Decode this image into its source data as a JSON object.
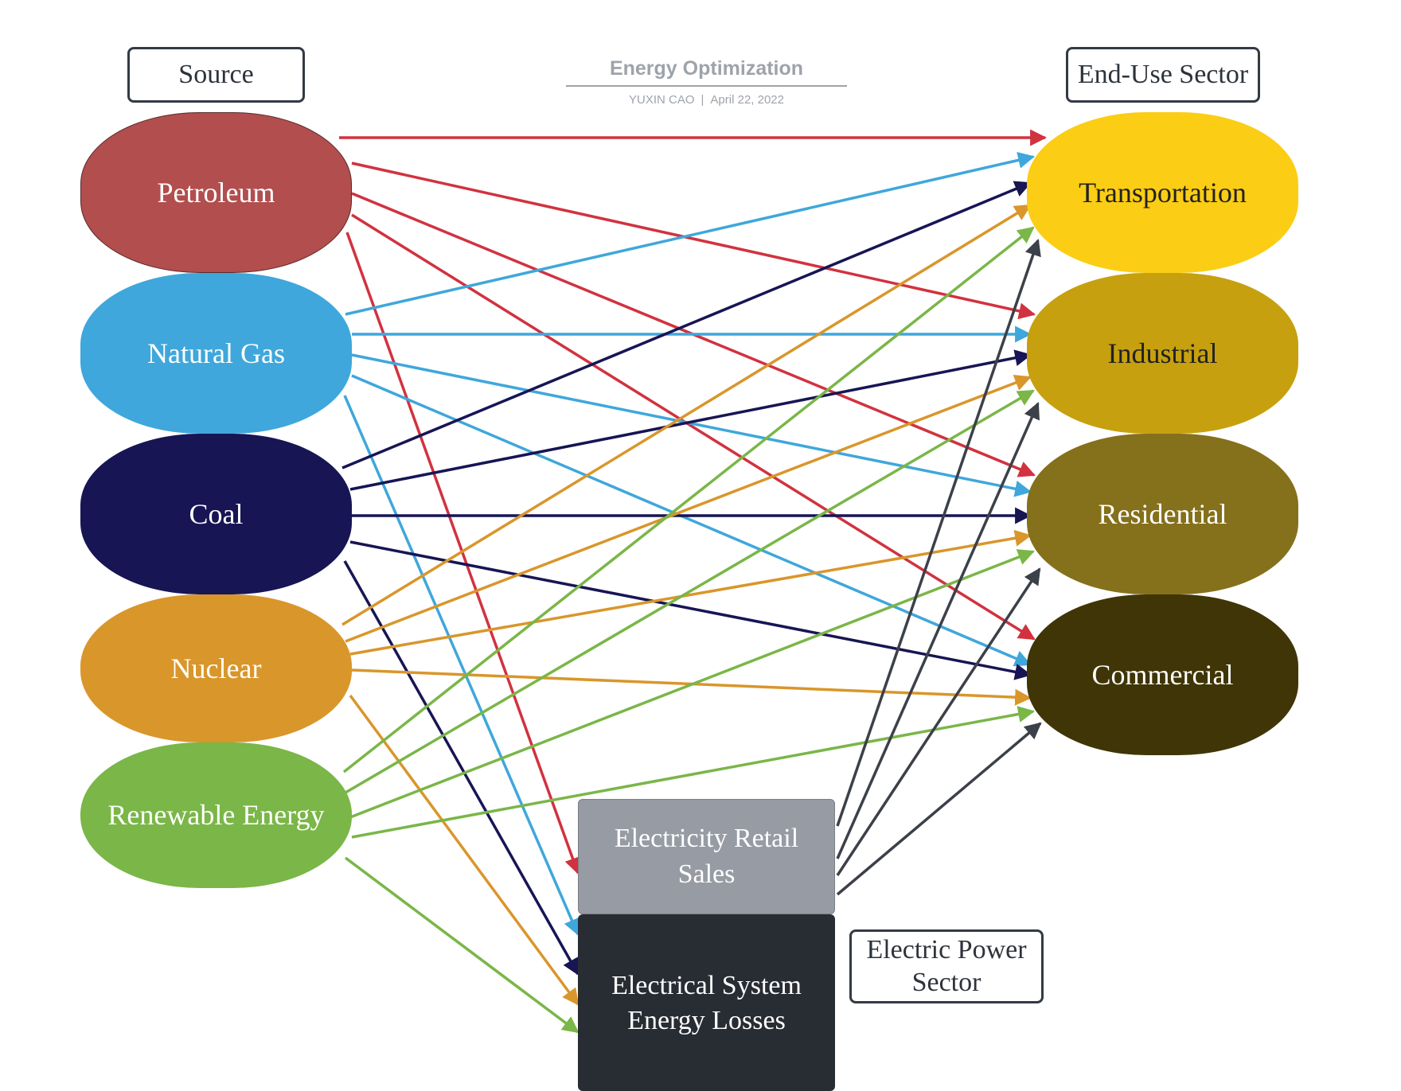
{
  "diagram": {
    "title": "Energy Optimization",
    "author": "YUXIN CAO",
    "date": "April 22, 2022",
    "separator": "|"
  },
  "headers": {
    "source": "Source",
    "end_use": "End-Use Sector",
    "electric_power": [
      "Electric Power",
      "Sector"
    ]
  },
  "sources": [
    {
      "id": "petroleum",
      "label": "Petroleum",
      "color": "#b24e4e",
      "edge_color": "#d1323f"
    },
    {
      "id": "natural_gas",
      "label": "Natural Gas",
      "color": "#3fa7db",
      "edge_color": "#3fa7db"
    },
    {
      "id": "coal",
      "label": "Coal",
      "color": "#171554",
      "edge_color": "#171554"
    },
    {
      "id": "nuclear",
      "label": "Nuclear",
      "color": "#d9962b",
      "edge_color": "#d9962b"
    },
    {
      "id": "renewable",
      "label": "Renewable Energy",
      "color": "#7ab648",
      "edge_color": "#7ab648"
    }
  ],
  "sectors": [
    {
      "id": "transportation",
      "label": "Transportation",
      "color": "#fbcd14",
      "text_color": "#222222"
    },
    {
      "id": "industrial",
      "label": "Industrial",
      "color": "#c6a00f",
      "text_color": "#222222"
    },
    {
      "id": "residential",
      "label": "Residential",
      "color": "#85701b",
      "text_color": "#ffffff"
    },
    {
      "id": "commercial",
      "label": "Commercial",
      "color": "#3f3506",
      "text_color": "#ffffff"
    }
  ],
  "power_nodes": [
    {
      "id": "retail",
      "lines": [
        "Electricity Retail",
        "Sales"
      ],
      "color": "#979ba4"
    },
    {
      "id": "losses",
      "lines": [
        "Electrical System",
        "Energy Losses"
      ],
      "color": "#282c33"
    }
  ],
  "retail_edge_color": "#3c4049",
  "flows": [
    {
      "from": "petroleum",
      "to": [
        "transportation",
        "industrial",
        "residential",
        "commercial",
        "retail"
      ]
    },
    {
      "from": "natural_gas",
      "to": [
        "transportation",
        "industrial",
        "residential",
        "commercial",
        "losses"
      ]
    },
    {
      "from": "coal",
      "to": [
        "transportation",
        "industrial",
        "residential",
        "commercial",
        "losses"
      ]
    },
    {
      "from": "nuclear",
      "to": [
        "transportation",
        "industrial",
        "residential",
        "commercial",
        "losses"
      ]
    },
    {
      "from": "renewable",
      "to": [
        "transportation",
        "industrial",
        "residential",
        "commercial",
        "losses"
      ]
    },
    {
      "from": "retail",
      "to": [
        "transportation",
        "industrial",
        "residential",
        "commercial"
      ]
    }
  ]
}
